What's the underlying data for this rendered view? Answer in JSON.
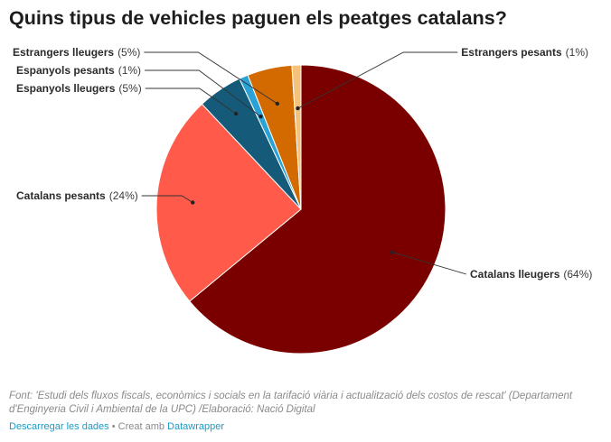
{
  "header": {
    "title": "Quins tipus de vehicles paguen els peatges catalans?"
  },
  "chart_data": {
    "type": "pie",
    "title": "Quins tipus de vehicles paguen els peatges catalans?",
    "start_angle_deg": 0,
    "direction": "clockwise",
    "slices": [
      {
        "id": "catalans-lleugers",
        "name": "Catalans lleugers",
        "value": 64,
        "pct_label": "(64%)",
        "color": "#7a0000"
      },
      {
        "id": "catalans-pesants",
        "name": "Catalans pesants",
        "value": 24,
        "pct_label": "(24%)",
        "color": "#ff5a4a"
      },
      {
        "id": "espanyols-lleugers",
        "name": "Espanyols lleugers",
        "value": 5,
        "pct_label": "(5%)",
        "color": "#155a78"
      },
      {
        "id": "espanyols-pesants",
        "name": "Espanyols pesants",
        "value": 1,
        "pct_label": "(1%)",
        "color": "#2aa2d5"
      },
      {
        "id": "estrangers-lleugers",
        "name": "Estrangers lleugers",
        "value": 5,
        "pct_label": "(5%)",
        "color": "#d36a00"
      },
      {
        "id": "estrangers-pesants",
        "name": "Estrangers pesants",
        "value": 1,
        "pct_label": "(1%)",
        "color": "#f4c27a"
      }
    ]
  },
  "footer": {
    "source": "Font: 'Estudi dels fluxos fiscals, econòmics i socials en la tarifació viària i actualització dels costos de rescat' (Departament d'Enginyeria Civil i Ambiental de la UPC) /Elaboració: Nació Digital",
    "download_label": "Descarregar les dades",
    "separator": " • Creat amb ",
    "tool_label": "Datawrapper"
  }
}
